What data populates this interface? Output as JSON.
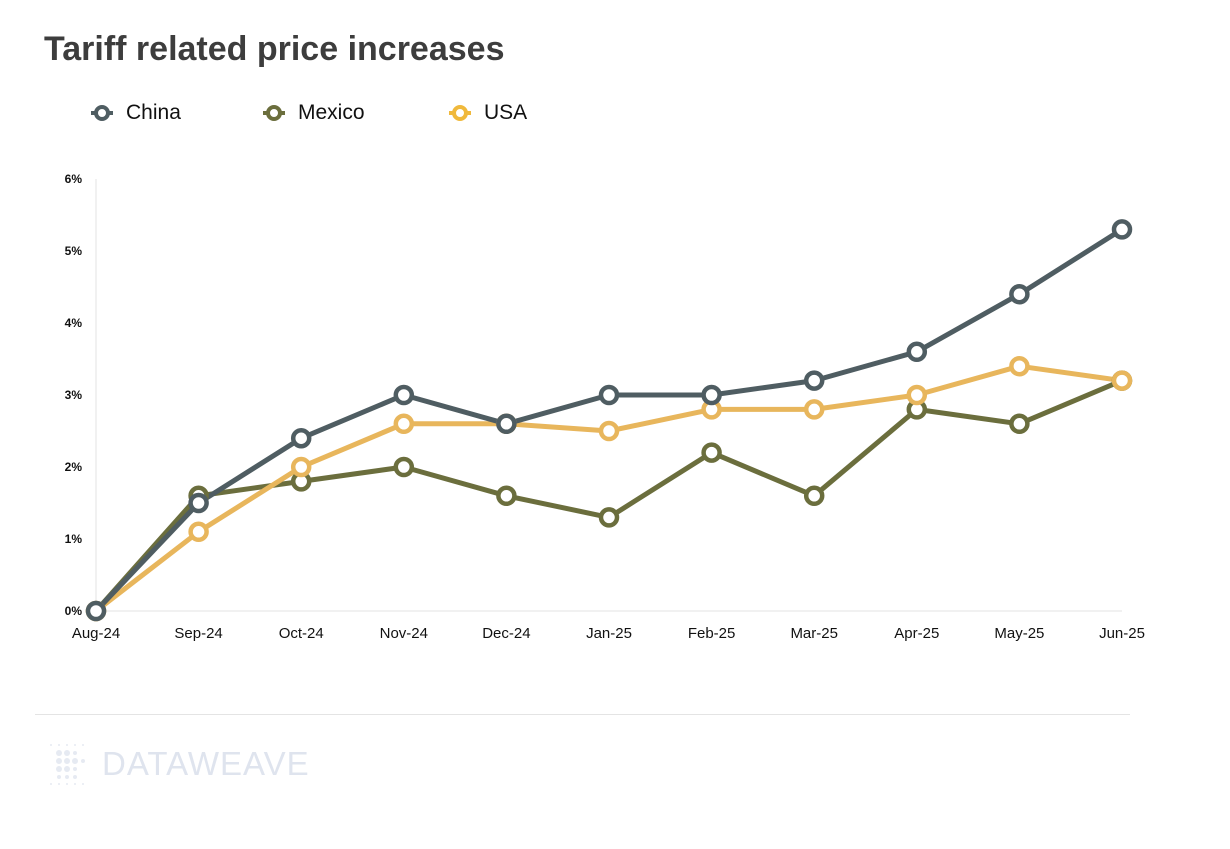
{
  "chart_data": {
    "type": "line",
    "title": "Tariff related price increases",
    "categories": [
      "Aug-24",
      "Sep-24",
      "Oct-24",
      "Nov-24",
      "Dec-24",
      "Jan-25",
      "Feb-25",
      "Mar-25",
      "Apr-25",
      "May-25",
      "Jun-25"
    ],
    "series": [
      {
        "name": "China",
        "color": "#4f5d62",
        "values": [
          0,
          1.5,
          2.4,
          3.0,
          2.6,
          3.0,
          3.0,
          3.2,
          3.6,
          4.4,
          5.3
        ]
      },
      {
        "name": "Mexico",
        "color": "#6b6e3d",
        "values": [
          0,
          1.6,
          1.8,
          2.0,
          1.6,
          1.3,
          2.2,
          1.6,
          2.8,
          2.6,
          3.2
        ]
      },
      {
        "name": "USA",
        "color": "#e8b65c",
        "legend_color": "#f0b93c",
        "values": [
          0,
          1.1,
          2.0,
          2.6,
          2.6,
          2.5,
          2.8,
          2.8,
          3.0,
          3.4,
          3.2
        ]
      }
    ],
    "yticks": [
      "0%",
      "1%",
      "2%",
      "3%",
      "4%",
      "5%",
      "6%"
    ],
    "ylim": [
      0,
      6
    ],
    "xlabel": "",
    "ylabel": "",
    "grid": false,
    "legend_position": "top-left"
  },
  "logo": {
    "text": "DATAWEAVE"
  }
}
